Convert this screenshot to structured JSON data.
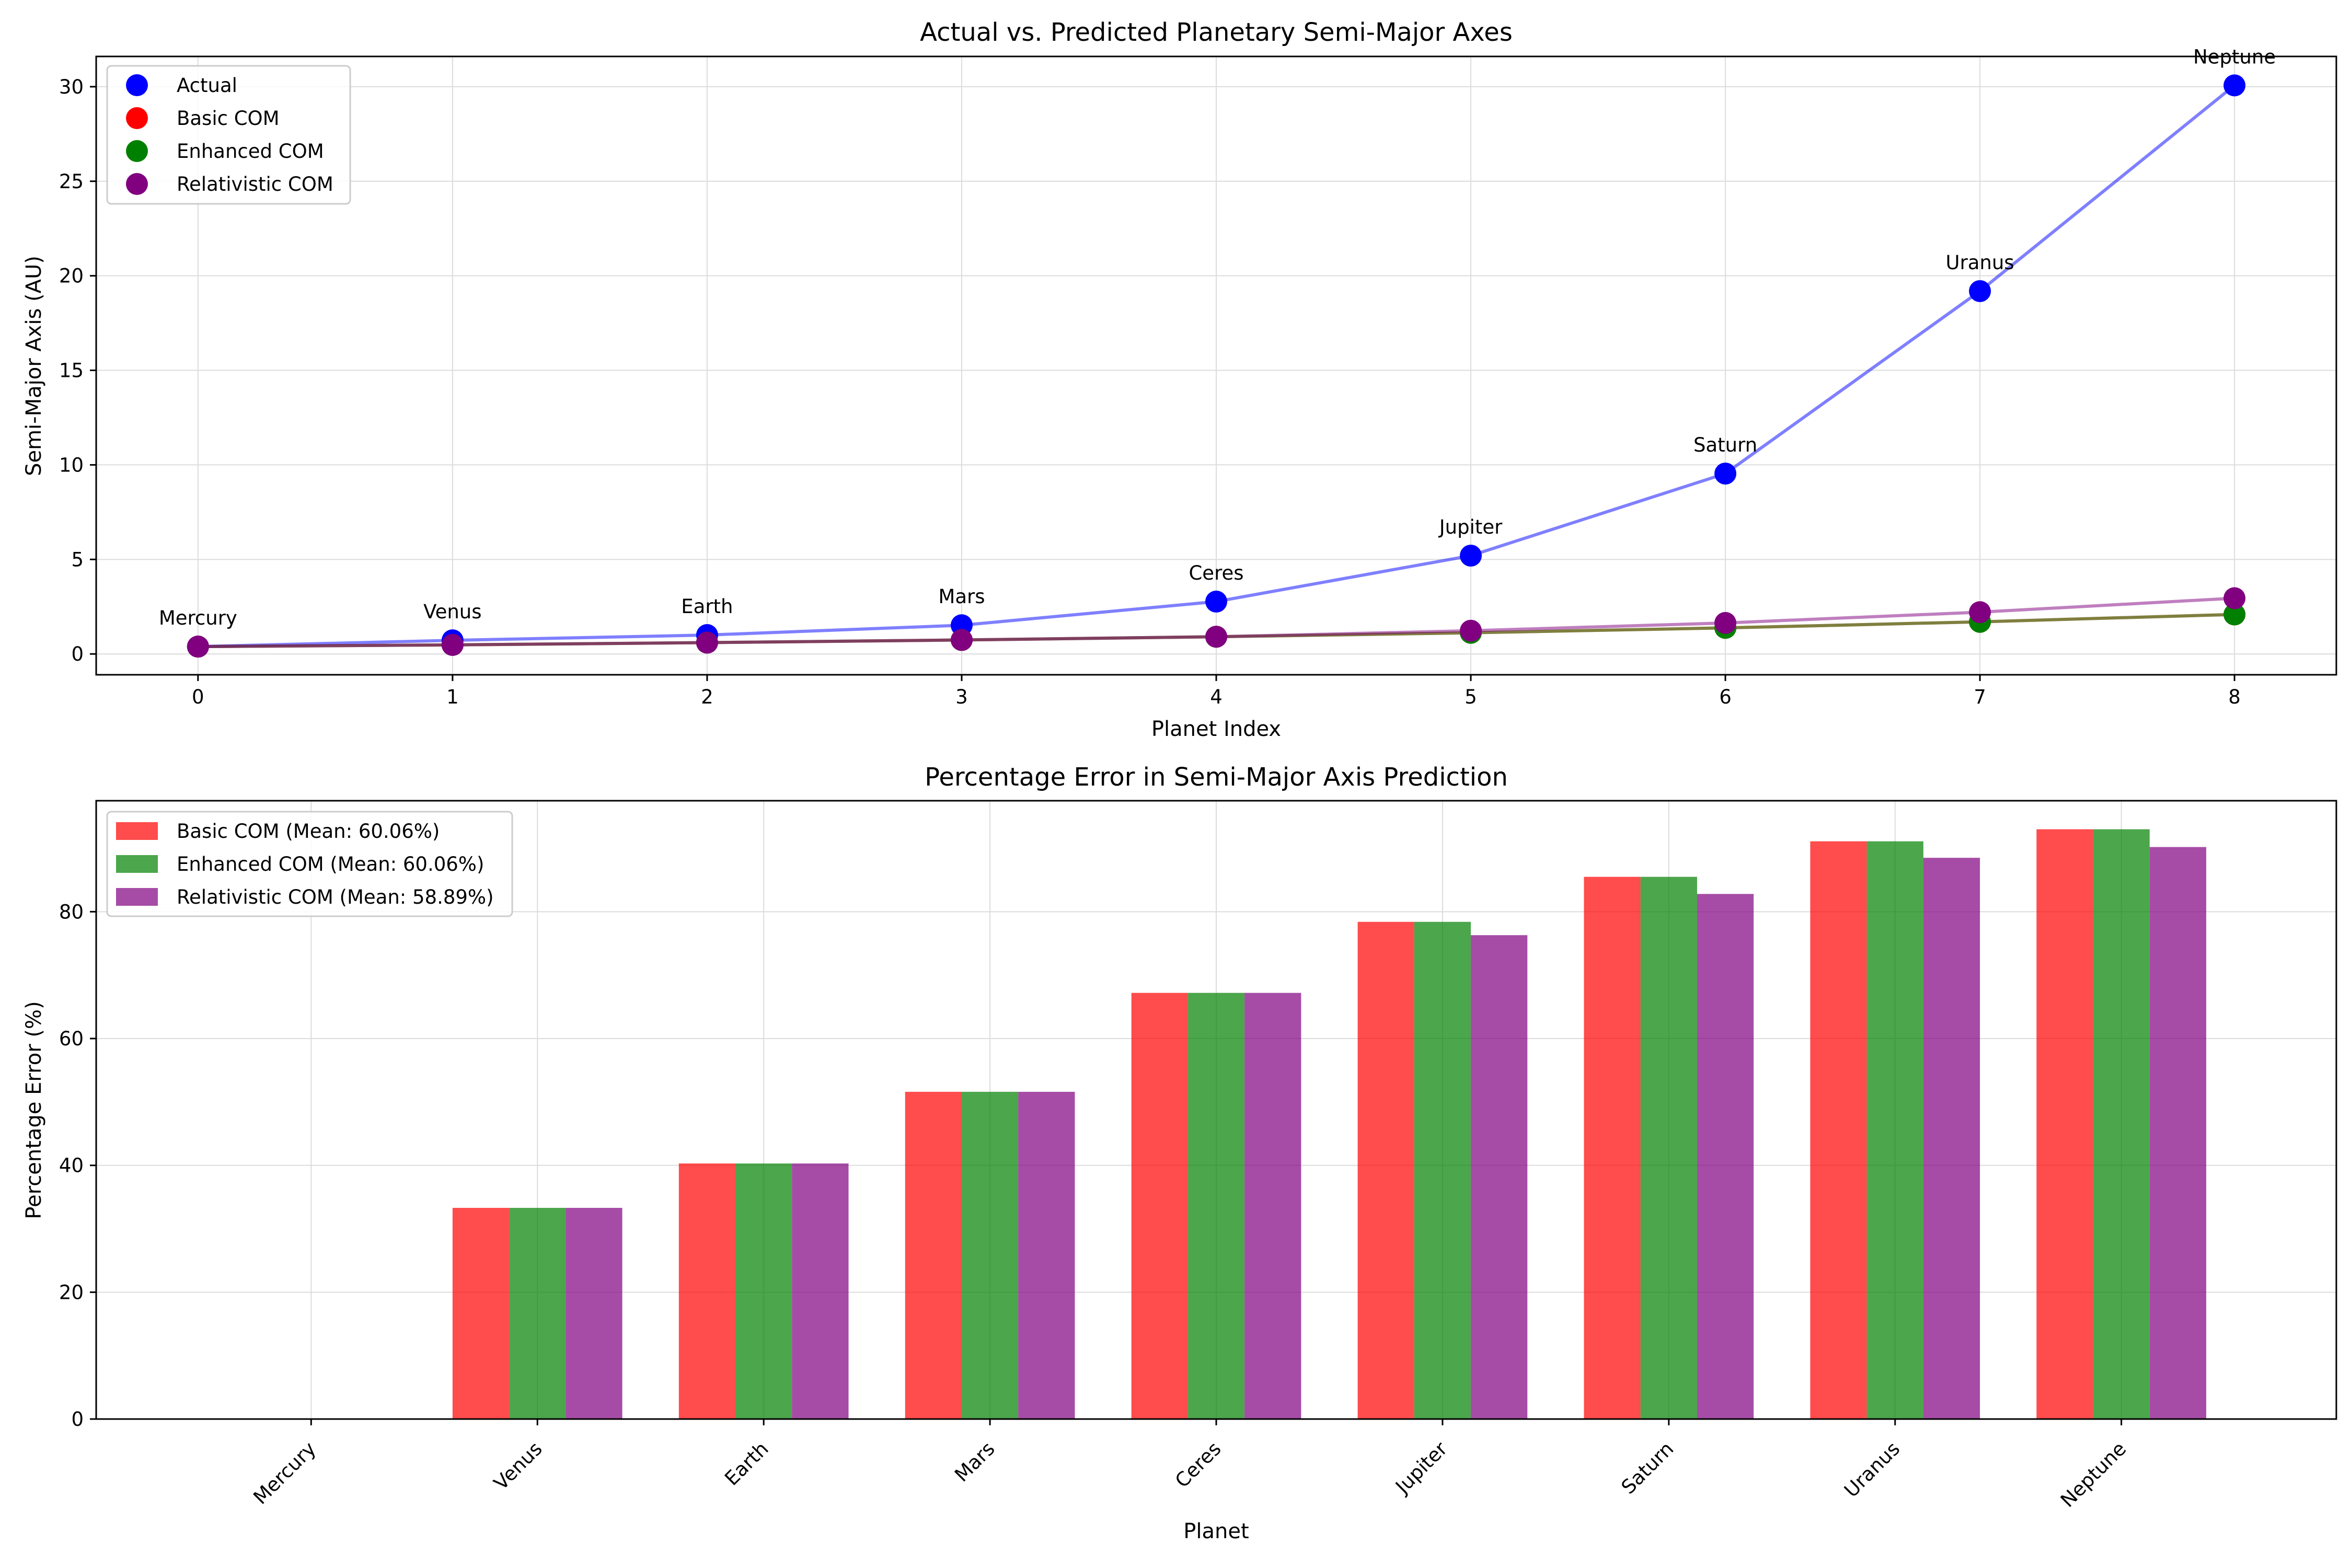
{
  "chart_data": [
    {
      "type": "line",
      "title": "Actual vs. Predicted Planetary Semi-Major Axes",
      "xlabel": "Planet Index",
      "ylabel": "Semi-Major Axis (AU)",
      "x": [
        0,
        1,
        2,
        3,
        4,
        5,
        6,
        7,
        8
      ],
      "xlim": [
        -0.4,
        8.4
      ],
      "ylim": [
        -1.1,
        31.6
      ],
      "xticks": [
        0,
        1,
        2,
        3,
        4,
        5,
        6,
        7,
        8
      ],
      "yticks": [
        0,
        5,
        10,
        15,
        20,
        25,
        30
      ],
      "grid": true,
      "legend_position": "top-left",
      "point_labels": [
        "Mercury",
        "Venus",
        "Earth",
        "Mars",
        "Ceres",
        "Jupiter",
        "Saturn",
        "Uranus",
        "Neptune"
      ],
      "series": [
        {
          "name": "Actual",
          "color": "#0000ff",
          "values": [
            0.39,
            0.72,
            1.0,
            1.52,
            2.77,
            5.2,
            9.54,
            19.19,
            30.07
          ]
        },
        {
          "name": "Basic COM",
          "color": "#ff0000",
          "values": [
            0.39,
            0.48,
            0.6,
            0.74,
            0.91,
            1.12,
            1.38,
            1.7,
            2.09
          ]
        },
        {
          "name": "Enhanced COM",
          "color": "#008000",
          "values": [
            0.39,
            0.48,
            0.6,
            0.74,
            0.91,
            1.12,
            1.38,
            1.7,
            2.09
          ]
        },
        {
          "name": "Relativistic COM",
          "color": "#800080",
          "values": [
            0.39,
            0.48,
            0.6,
            0.74,
            0.91,
            1.23,
            1.64,
            2.21,
            2.95
          ]
        }
      ]
    },
    {
      "type": "bar",
      "title": "Percentage Error in Semi-Major Axis Prediction",
      "xlabel": "Planet",
      "ylabel": "Percentage Error (%)",
      "categories": [
        "Mercury",
        "Venus",
        "Earth",
        "Mars",
        "Ceres",
        "Jupiter",
        "Saturn",
        "Uranus",
        "Neptune"
      ],
      "ylim": [
        0,
        97.5
      ],
      "yticks": [
        0,
        20,
        40,
        60,
        80
      ],
      "grid": true,
      "legend_position": "top-left",
      "series": [
        {
          "name": "Basic COM (Mean: 60.06%)",
          "color": "#ff0000",
          "values": [
            0,
            33.3,
            40.3,
            51.6,
            67.2,
            78.4,
            85.5,
            91.1,
            93.0
          ]
        },
        {
          "name": "Enhanced COM (Mean: 60.06%)",
          "color": "#008000",
          "values": [
            0,
            33.3,
            40.3,
            51.6,
            67.2,
            78.4,
            85.5,
            91.1,
            93.0
          ]
        },
        {
          "name": "Relativistic COM (Mean: 58.89%)",
          "color": "#800080",
          "values": [
            0,
            33.3,
            40.3,
            51.6,
            67.2,
            76.3,
            82.8,
            88.5,
            90.2
          ]
        }
      ]
    }
  ]
}
